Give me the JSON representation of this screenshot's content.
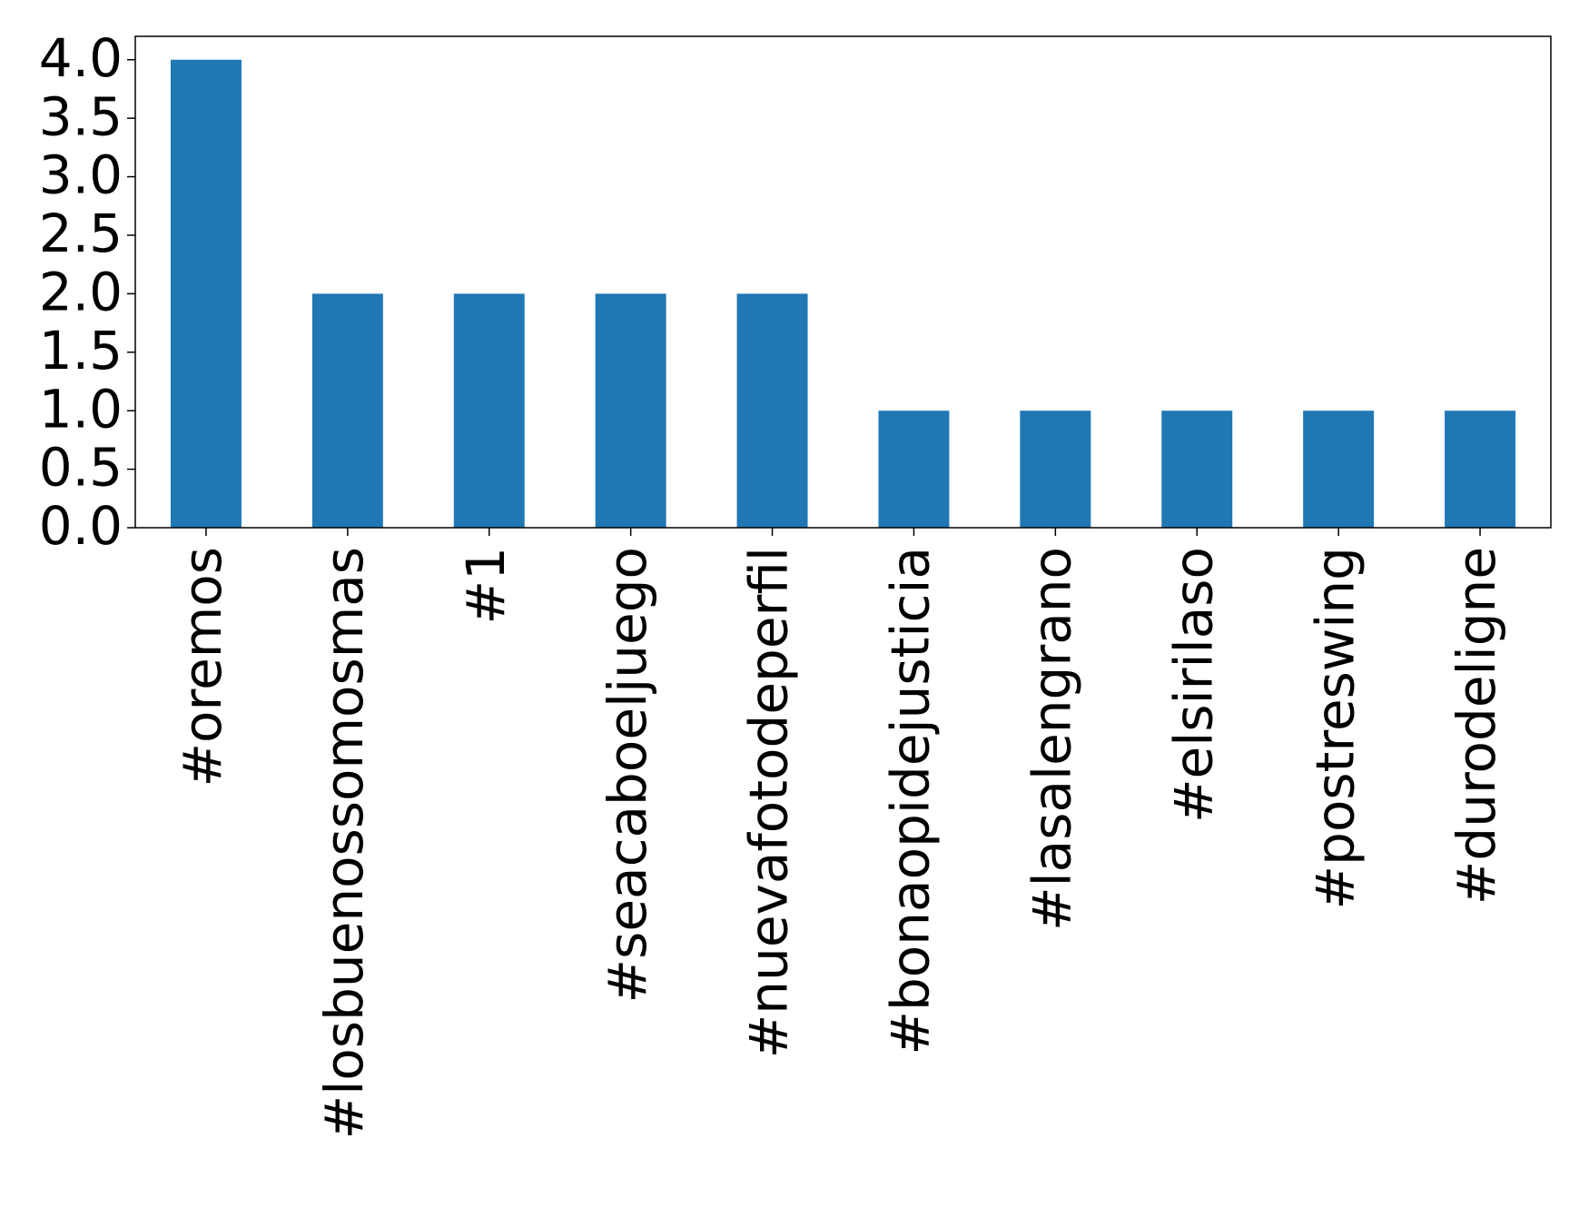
{
  "chart_data": {
    "type": "bar",
    "categories": [
      "#oremos",
      "#losbuenossomosmas",
      "#1",
      "#seacaboeljuego",
      "#nuevafotodeperfil",
      "#bonaopidejusticia",
      "#lasalengrano",
      "#elsirilaso",
      "#postreswing",
      "#durodeligne"
    ],
    "values": [
      4,
      2,
      2,
      2,
      2,
      1,
      1,
      1,
      1,
      1
    ],
    "color": "#1f77b4",
    "ylim": [
      0,
      4.2
    ],
    "yticks": [
      {
        "value": 0,
        "label": "0.0"
      },
      0.5,
      {
        "value": 1,
        "label": "1.0"
      },
      1.5,
      {
        "value": 2,
        "label": "2.0"
      },
      2.5,
      {
        "value": 3,
        "label": "3.0"
      },
      3.5,
      {
        "value": 4,
        "label": "4.0"
      }
    ],
    "grid": false
  }
}
